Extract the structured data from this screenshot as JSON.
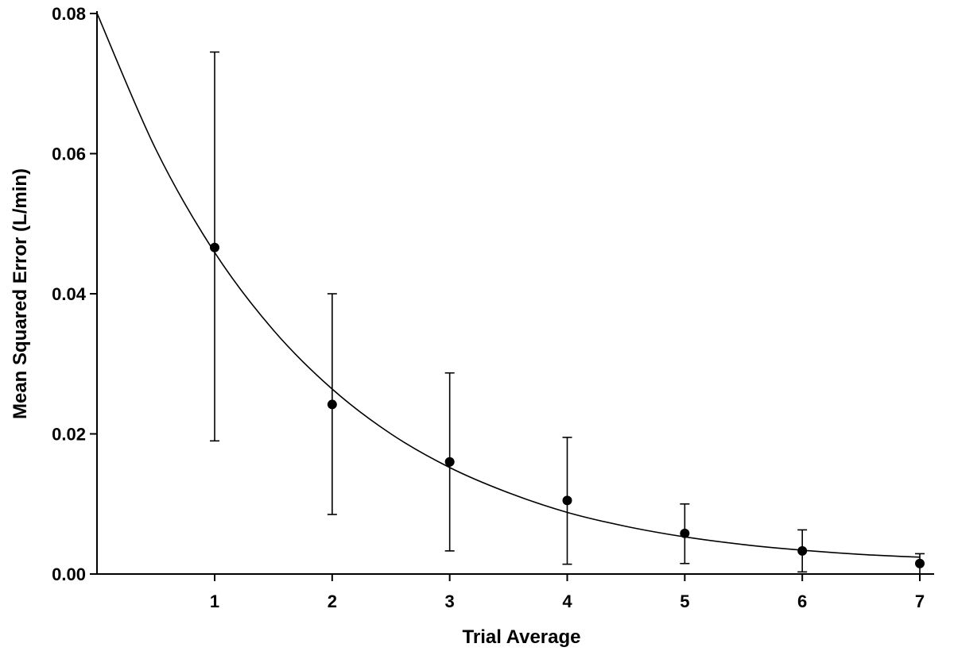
{
  "chart_data": {
    "type": "scatter",
    "title": "",
    "xlabel": "Trial Average",
    "ylabel": "Mean Squared Error (L/min)",
    "xlim": [
      0,
      7.2
    ],
    "ylim": [
      0,
      0.08
    ],
    "x_ticks": [
      1,
      2,
      3,
      4,
      5,
      6,
      7
    ],
    "x_tick_labels": [
      "1",
      "2",
      "3",
      "4",
      "5",
      "6",
      "7"
    ],
    "y_ticks": [
      0,
      0.02,
      0.04,
      0.06,
      0.08
    ],
    "y_tick_labels": [
      "0.00",
      "0.02",
      "0.04",
      "0.06",
      "0.08"
    ],
    "grid": false,
    "series": [
      {
        "name": "Mean squared error",
        "points": [
          {
            "x": 1,
            "y": 0.0466,
            "err_low": 0.019,
            "err_high": 0.0745
          },
          {
            "x": 2,
            "y": 0.0242,
            "err_low": 0.0085,
            "err_high": 0.04
          },
          {
            "x": 3,
            "y": 0.016,
            "err_low": 0.0033,
            "err_high": 0.0287
          },
          {
            "x": 4,
            "y": 0.0105,
            "err_low": 0.0014,
            "err_high": 0.0195
          },
          {
            "x": 5,
            "y": 0.0058,
            "err_low": 0.0015,
            "err_high": 0.01
          },
          {
            "x": 6,
            "y": 0.0033,
            "err_low": 0.0003,
            "err_high": 0.0063
          },
          {
            "x": 7,
            "y": 0.0015,
            "err_low": 0.0,
            "err_high": 0.0029
          }
        ]
      }
    ],
    "fit_curve": {
      "name": "Exponential fit",
      "x": [
        0,
        0.5,
        1,
        1.5,
        2,
        2.5,
        3,
        3.5,
        4,
        4.5,
        5,
        5.5,
        6,
        6.5,
        7
      ],
      "y": [
        0.08,
        0.0606,
        0.0459,
        0.0348,
        0.0264,
        0.02,
        0.0152,
        0.0116,
        0.0088,
        0.0068,
        0.0053,
        0.0042,
        0.0034,
        0.0028,
        0.0024
      ]
    }
  }
}
